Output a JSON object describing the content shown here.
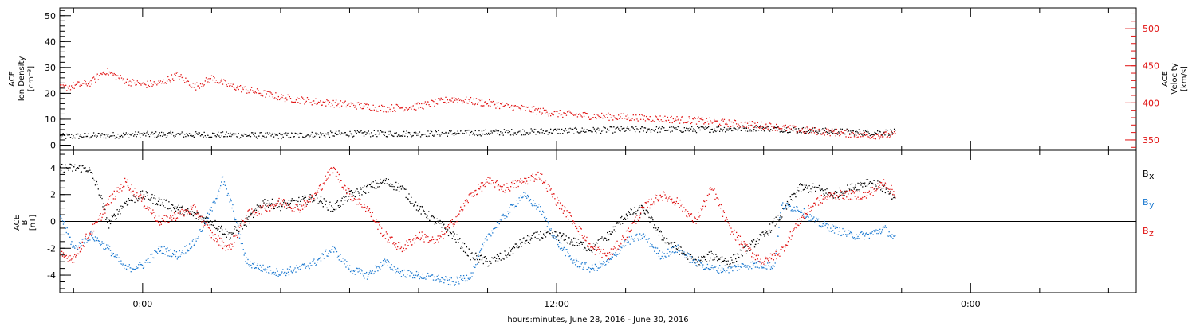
{
  "chart_data": [
    {
      "type": "scatter",
      "panel": "top",
      "left_axis": {
        "label_lines": [
          "ACE",
          "Ion Density",
          "[cm⁻³]"
        ],
        "ylim": [
          -2,
          53
        ],
        "ticks": [
          0,
          10,
          20,
          30,
          40,
          50
        ],
        "color": "#000000"
      },
      "right_axis": {
        "label_lines": [
          "ACE",
          "Velocity",
          "[km/s]"
        ],
        "ylim": [
          336,
          528
        ],
        "ticks": [
          350,
          400,
          450,
          500
        ],
        "color": "#e01010"
      },
      "series": [
        {
          "axis": "left",
          "color": "#000000",
          "anchors": [
            [
              -2.4,
              3.5
            ],
            [
              0,
              4.3
            ],
            [
              2,
              4.2
            ],
            [
              4,
              3.8
            ],
            [
              6,
              4.6
            ],
            [
              8,
              4.6
            ],
            [
              10,
              5
            ],
            [
              12,
              5.6
            ],
            [
              14,
              6.2
            ],
            [
              16,
              6.2
            ],
            [
              18,
              6.8
            ],
            [
              19,
              6
            ],
            [
              20,
              5.5
            ],
            [
              21,
              5
            ],
            [
              21.8,
              5.2
            ]
          ],
          "spread": 1.2
        },
        {
          "axis": "right",
          "color": "#e01010",
          "anchors": [
            [
              -2.4,
              420
            ],
            [
              -1.5,
              428
            ],
            [
              -1.1,
              444
            ],
            [
              -0.5,
              430
            ],
            [
              0,
              425
            ],
            [
              0.5,
              427
            ],
            [
              1,
              438
            ],
            [
              1.5,
              422
            ],
            [
              2,
              434
            ],
            [
              2.5,
              424
            ],
            [
              3,
              418
            ],
            [
              4,
              408
            ],
            [
              5,
              402
            ],
            [
              6,
              398
            ],
            [
              7,
              393
            ],
            [
              8,
              396
            ],
            [
              9,
              406
            ],
            [
              10,
              400
            ],
            [
              11,
              393
            ],
            [
              12,
              386
            ],
            [
              13,
              383
            ],
            [
              14,
              381
            ],
            [
              15,
              379
            ],
            [
              16,
              377
            ],
            [
              17,
              373
            ],
            [
              18,
              370
            ],
            [
              19,
              364
            ],
            [
              20,
              361
            ],
            [
              21,
              357
            ],
            [
              21.8,
              357
            ]
          ],
          "spread": 5
        }
      ]
    },
    {
      "type": "scatter",
      "panel": "bottom",
      "left_axis": {
        "label_lines": [
          "ACE",
          "B",
          "[nT]"
        ],
        "ylim": [
          -5.3,
          5.3
        ],
        "ticks": [
          -4,
          -2,
          0,
          2,
          4
        ],
        "zero_line": true
      },
      "legend": {
        "placement": "right",
        "items": [
          {
            "name": "B",
            "sub": "x",
            "color": "#000000"
          },
          {
            "name": "B",
            "sub": "y",
            "color": "#1a78d0"
          },
          {
            "name": "B",
            "sub": "z",
            "color": "#e01010"
          }
        ]
      },
      "series": [
        {
          "name": "Bx",
          "color": "#000000",
          "anchors": [
            [
              -2.4,
              4
            ],
            [
              -1.6,
              4
            ],
            [
              -1.3,
              2.5
            ],
            [
              -1,
              -0.2
            ],
            [
              -0.5,
              1.5
            ],
            [
              0,
              2
            ],
            [
              0.5,
              1.5
            ],
            [
              1,
              1
            ],
            [
              1.5,
              0.5
            ],
            [
              2,
              0
            ],
            [
              2.5,
              -1
            ],
            [
              3,
              0
            ],
            [
              3.5,
              1.5
            ],
            [
              4,
              1.2
            ],
            [
              4.5,
              1.5
            ],
            [
              5,
              1.8
            ],
            [
              5.5,
              1
            ],
            [
              6,
              2
            ],
            [
              6.5,
              2.5
            ],
            [
              7,
              3
            ],
            [
              7.5,
              2.5
            ],
            [
              8,
              1
            ],
            [
              8.5,
              0
            ],
            [
              9,
              -1
            ],
            [
              9.5,
              -2.5
            ],
            [
              10,
              -3
            ],
            [
              10.5,
              -2.5
            ],
            [
              11,
              -1.5
            ],
            [
              11.5,
              -1
            ],
            [
              12,
              -1
            ],
            [
              12.5,
              -1.5
            ],
            [
              13,
              -2
            ],
            [
              13.5,
              -1
            ],
            [
              14,
              0.5
            ],
            [
              14.5,
              1
            ],
            [
              15,
              -1
            ],
            [
              15.5,
              -2
            ],
            [
              16,
              -3
            ],
            [
              16.5,
              -2.5
            ],
            [
              17,
              -3
            ],
            [
              17.5,
              -2
            ],
            [
              18,
              -1
            ],
            [
              18.5,
              0.5
            ],
            [
              19,
              2.5
            ],
            [
              19.5,
              2.5
            ],
            [
              20,
              2
            ],
            [
              20.5,
              2.5
            ],
            [
              21,
              3
            ],
            [
              21.5,
              2.5
            ],
            [
              21.8,
              1.5
            ]
          ],
          "spread": 0.35
        },
        {
          "name": "By",
          "color": "#1a78d0",
          "anchors": [
            [
              -2.4,
              0.5
            ],
            [
              -2,
              -2
            ],
            [
              -1.5,
              -1
            ],
            [
              -1,
              -2
            ],
            [
              -0.5,
              -3.5
            ],
            [
              0,
              -3.2
            ],
            [
              0.5,
              -2
            ],
            [
              1,
              -2.5
            ],
            [
              1.5,
              -1.5
            ],
            [
              2,
              1
            ],
            [
              2.3,
              3.2
            ],
            [
              2.6,
              1
            ],
            [
              3,
              -3
            ],
            [
              3.5,
              -3.5
            ],
            [
              4,
              -3.8
            ],
            [
              4.5,
              -3.5
            ],
            [
              5,
              -3
            ],
            [
              5.5,
              -2
            ],
            [
              6,
              -3.5
            ],
            [
              6.5,
              -4
            ],
            [
              7,
              -3
            ],
            [
              7.5,
              -3.8
            ],
            [
              8,
              -4
            ],
            [
              8.5,
              -4.2
            ],
            [
              9,
              -4.5
            ],
            [
              9.5,
              -4
            ],
            [
              10,
              -1
            ],
            [
              10.5,
              0.5
            ],
            [
              11,
              2
            ],
            [
              11.5,
              1
            ],
            [
              12,
              -1.5
            ],
            [
              12.5,
              -3
            ],
            [
              13,
              -3.5
            ],
            [
              13.5,
              -3
            ],
            [
              14,
              -1.5
            ],
            [
              14.5,
              -1
            ],
            [
              15,
              -2.5
            ],
            [
              15.5,
              -2
            ],
            [
              16,
              -3
            ],
            [
              16.5,
              -3.5
            ],
            [
              17,
              -3.5
            ],
            [
              17.5,
              -3.2
            ],
            [
              18,
              -3.2
            ],
            [
              18.3,
              -3.3
            ],
            [
              18.5,
              1.2
            ],
            [
              19,
              1
            ],
            [
              19.5,
              0
            ],
            [
              20,
              -0.5
            ],
            [
              20.5,
              -1
            ],
            [
              21,
              -1
            ],
            [
              21.5,
              -0.5
            ],
            [
              21.8,
              -1.3
            ]
          ],
          "spread": 0.3
        },
        {
          "name": "Bz",
          "color": "#e01010",
          "anchors": [
            [
              -2.4,
              -2.5
            ],
            [
              -2,
              -2.7
            ],
            [
              -1.6,
              -1
            ],
            [
              -1.3,
              0
            ],
            [
              -1,
              1.5
            ],
            [
              -0.5,
              3
            ],
            [
              0,
              1.5
            ],
            [
              0.5,
              0
            ],
            [
              1,
              0.5
            ],
            [
              1.5,
              1
            ],
            [
              2,
              -1
            ],
            [
              2.5,
              -2
            ],
            [
              3,
              0.5
            ],
            [
              3.5,
              1
            ],
            [
              4,
              1.5
            ],
            [
              4.5,
              1
            ],
            [
              5,
              2
            ],
            [
              5.5,
              4
            ],
            [
              6,
              2
            ],
            [
              6.5,
              1
            ],
            [
              7,
              -1
            ],
            [
              7.5,
              -2
            ],
            [
              8,
              -1
            ],
            [
              8.5,
              -1.5
            ],
            [
              9,
              0
            ],
            [
              9.5,
              2
            ],
            [
              10,
              3
            ],
            [
              10.5,
              2.5
            ],
            [
              11,
              3
            ],
            [
              11.5,
              3.5
            ],
            [
              12,
              1.5
            ],
            [
              12.5,
              0
            ],
            [
              13,
              -2
            ],
            [
              13.5,
              -2.5
            ],
            [
              14,
              -1
            ],
            [
              14.5,
              1
            ],
            [
              15,
              2
            ],
            [
              15.5,
              1.5
            ],
            [
              16,
              0
            ],
            [
              16.5,
              2.5
            ],
            [
              17,
              -0.5
            ],
            [
              17.5,
              -2
            ],
            [
              18,
              -3
            ],
            [
              18.5,
              -2.2
            ],
            [
              19,
              0
            ],
            [
              19.5,
              1.5
            ],
            [
              20,
              2
            ],
            [
              20.5,
              2
            ],
            [
              21,
              2
            ],
            [
              21.5,
              3
            ],
            [
              21.8,
              2
            ]
          ],
          "spread": 0.35
        }
      ]
    }
  ],
  "x_axis": {
    "label": "hours:minutes, June 28, 2016 - June 30, 2016",
    "xlim": [
      -2.4,
      28.8
    ],
    "tick_labels": [
      {
        "x": 0,
        "label": "0:00"
      },
      {
        "x": 12,
        "label": "12:00"
      },
      {
        "x": 24,
        "label": "0:00"
      }
    ],
    "minor_tick_step": 2
  }
}
